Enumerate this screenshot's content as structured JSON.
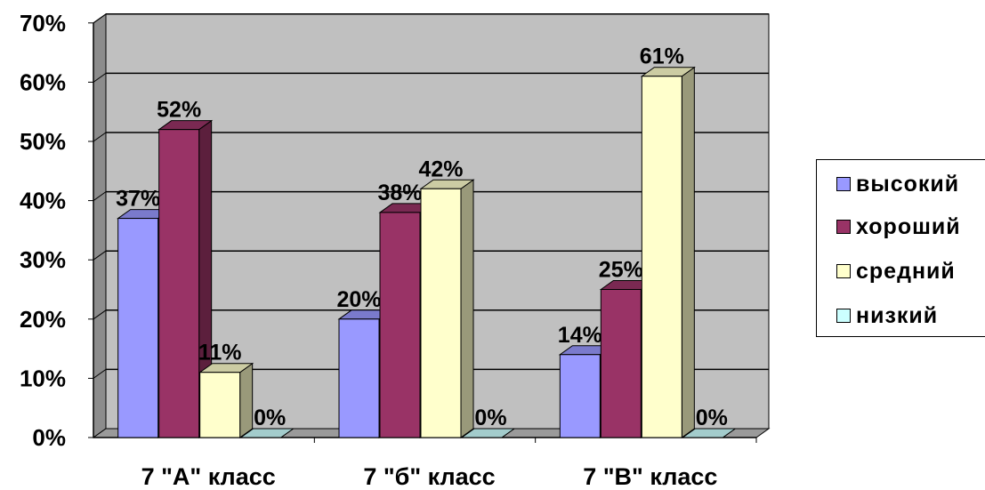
{
  "chart_data": {
    "type": "bar",
    "style": "3d clustered column",
    "categories": [
      "7 \"А\" класс",
      "7 \"б\" класс",
      "7 \"В\" класс"
    ],
    "series": [
      {
        "name": "высокий",
        "values": [
          37,
          20,
          14
        ],
        "color": "#9999FF",
        "labels": [
          "37%",
          "20%",
          "14%"
        ]
      },
      {
        "name": "хороший",
        "values": [
          52,
          38,
          25
        ],
        "color": "#993366",
        "labels": [
          "52%",
          "38%",
          "25%"
        ]
      },
      {
        "name": "средний",
        "values": [
          11,
          42,
          61
        ],
        "color": "#FFFFCC",
        "labels": [
          "11%",
          "42%",
          "61%"
        ]
      },
      {
        "name": "низкий",
        "values": [
          0,
          0,
          0
        ],
        "color": "#CCFFFF",
        "labels": [
          "0%",
          "0%",
          "0%"
        ]
      }
    ],
    "y_ticks": [
      "0%",
      "10%",
      "20%",
      "30%",
      "40%",
      "50%",
      "60%",
      "70%"
    ],
    "ylim": [
      0,
      70
    ],
    "grid": true,
    "wall_color": "#C0C0C0",
    "legend_position": "right"
  }
}
